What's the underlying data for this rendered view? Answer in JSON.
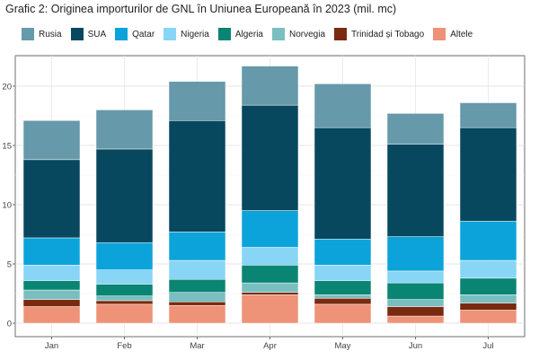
{
  "chart_data": {
    "type": "bar",
    "stacked": true,
    "title": "Grafic 2: Originea importurilor de GNL în Uniunea Europeană în 2023 (mil. mc)",
    "xlabel": "",
    "ylabel": "",
    "ylim": [
      0,
      22.5
    ],
    "yticks": [
      0,
      5,
      10,
      15,
      20
    ],
    "grid": true,
    "legend_position": "top",
    "categories": [
      "Jan",
      "Feb",
      "Mar",
      "Apr",
      "May",
      "Jun",
      "Jul"
    ],
    "series": [
      {
        "name": "Rusia",
        "color": "#6699AA",
        "values": [
          3.3,
          3.3,
          3.3,
          3.3,
          3.7,
          2.6,
          2.1
        ]
      },
      {
        "name": "SUA",
        "color": "#07485F",
        "values": [
          6.6,
          7.9,
          9.4,
          8.9,
          9.4,
          7.8,
          7.9
        ]
      },
      {
        "name": "Qatar",
        "color": "#0CA3DA",
        "values": [
          2.3,
          2.3,
          2.4,
          3.1,
          2.2,
          2.9,
          3.3
        ]
      },
      {
        "name": "Nigeria",
        "color": "#88D5F6",
        "values": [
          1.3,
          1.2,
          1.6,
          1.5,
          1.3,
          1.0,
          1.5
        ]
      },
      {
        "name": "Algeria",
        "color": "#0A8574",
        "values": [
          0.8,
          1.0,
          1.1,
          1.5,
          1.2,
          1.4,
          1.4
        ]
      },
      {
        "name": "Norvegia",
        "color": "#7ABFBF",
        "values": [
          0.8,
          0.4,
          0.8,
          0.8,
          0.3,
          0.6,
          0.7
        ]
      },
      {
        "name": "Trinidad și Tobago",
        "color": "#7A2A10",
        "values": [
          0.6,
          0.3,
          0.3,
          0.2,
          0.5,
          0.8,
          0.6
        ]
      },
      {
        "name": "Altele",
        "color": "#EE9278",
        "values": [
          1.4,
          1.6,
          1.5,
          2.4,
          1.6,
          0.6,
          1.1
        ]
      }
    ]
  }
}
